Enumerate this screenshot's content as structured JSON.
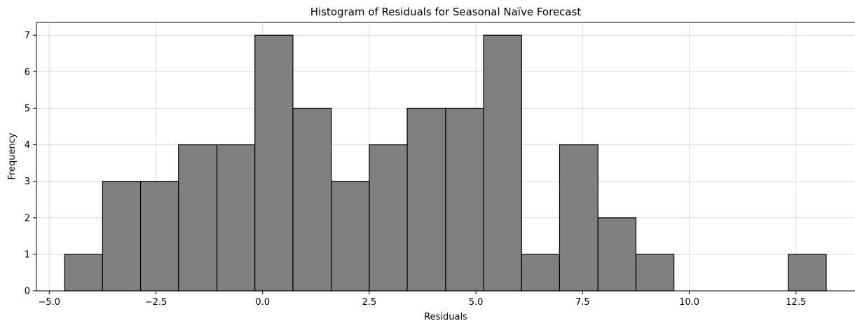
{
  "chart_data": {
    "type": "histogram",
    "title": "Histogram of Residuals for Seasonal Naïve Forecast",
    "xlabel": "Residuals",
    "ylabel": "Frequency",
    "xlim": [
      -5.3,
      13.9
    ],
    "ylim": [
      0,
      7.35
    ],
    "xticks": [
      -5.0,
      -2.5,
      0.0,
      2.5,
      5.0,
      7.5,
      10.0,
      12.5
    ],
    "xtick_labels": [
      "−5.0",
      "−2.5",
      "0.0",
      "2.5",
      "5.0",
      "7.5",
      "10.0",
      "12.5"
    ],
    "yticks": [
      0,
      1,
      2,
      3,
      4,
      5,
      6,
      7
    ],
    "ytick_labels": [
      "0",
      "1",
      "2",
      "3",
      "4",
      "5",
      "6",
      "7"
    ],
    "grid": true,
    "bar_color": "#808080",
    "edge_color": "#000000",
    "bins": [
      {
        "x0": -4.64,
        "x1": -3.75,
        "count": 1
      },
      {
        "x0": -3.75,
        "x1": -2.86,
        "count": 3
      },
      {
        "x0": -2.86,
        "x1": -1.97,
        "count": 3
      },
      {
        "x0": -1.97,
        "x1": -1.07,
        "count": 4
      },
      {
        "x0": -1.07,
        "x1": -0.18,
        "count": 4
      },
      {
        "x0": -0.18,
        "x1": 0.71,
        "count": 7
      },
      {
        "x0": 0.71,
        "x1": 1.61,
        "count": 5
      },
      {
        "x0": 1.61,
        "x1": 2.5,
        "count": 3
      },
      {
        "x0": 2.5,
        "x1": 3.39,
        "count": 4
      },
      {
        "x0": 3.39,
        "x1": 4.29,
        "count": 5
      },
      {
        "x0": 4.29,
        "x1": 5.18,
        "count": 5
      },
      {
        "x0": 5.18,
        "x1": 6.07,
        "count": 7
      },
      {
        "x0": 6.07,
        "x1": 6.96,
        "count": 1
      },
      {
        "x0": 6.96,
        "x1": 7.86,
        "count": 4
      },
      {
        "x0": 7.86,
        "x1": 8.75,
        "count": 2
      },
      {
        "x0": 8.75,
        "x1": 9.64,
        "count": 1
      },
      {
        "x0": 9.64,
        "x1": 10.54,
        "count": 0
      },
      {
        "x0": 10.54,
        "x1": 11.43,
        "count": 0
      },
      {
        "x0": 11.43,
        "x1": 12.32,
        "count": 0
      },
      {
        "x0": 12.32,
        "x1": 13.21,
        "count": 1
      }
    ]
  }
}
